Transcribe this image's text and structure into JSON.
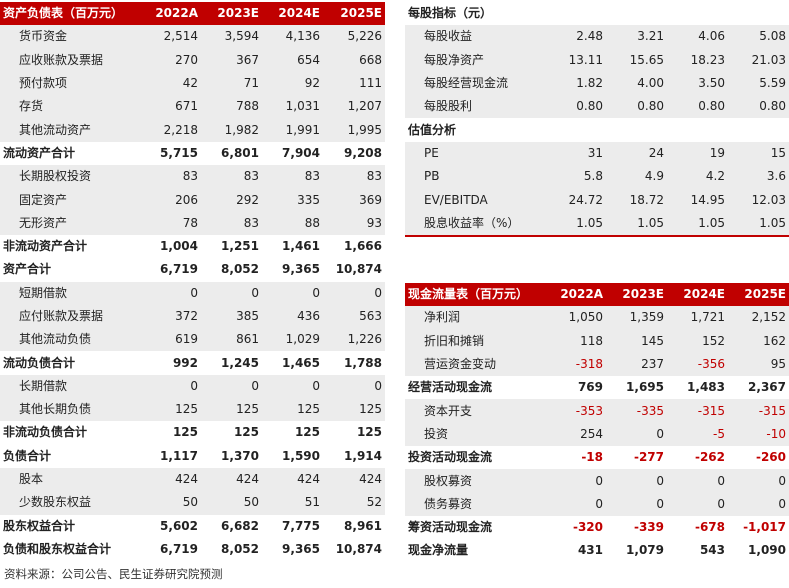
{
  "balance": {
    "header": [
      "资产负债表（百万元）",
      "2022A",
      "2023E",
      "2024E",
      "2025E"
    ],
    "rows": [
      {
        "label": "货币资金",
        "v": [
          "2,514",
          "3,594",
          "4,136",
          "5,226"
        ],
        "bold": false,
        "indent": true
      },
      {
        "label": "应收账款及票据",
        "v": [
          "270",
          "367",
          "654",
          "668"
        ],
        "bold": false,
        "indent": true
      },
      {
        "label": "预付款项",
        "v": [
          "42",
          "71",
          "92",
          "111"
        ],
        "bold": false,
        "indent": true
      },
      {
        "label": "存货",
        "v": [
          "671",
          "788",
          "1,031",
          "1,207"
        ],
        "bold": false,
        "indent": true
      },
      {
        "label": "其他流动资产",
        "v": [
          "2,218",
          "1,982",
          "1,991",
          "1,995"
        ],
        "bold": false,
        "indent": true
      },
      {
        "label": "流动资产合计",
        "v": [
          "5,715",
          "6,801",
          "7,904",
          "9,208"
        ],
        "bold": true,
        "indent": false
      },
      {
        "label": "长期股权投资",
        "v": [
          "83",
          "83",
          "83",
          "83"
        ],
        "bold": false,
        "indent": true
      },
      {
        "label": "固定资产",
        "v": [
          "206",
          "292",
          "335",
          "369"
        ],
        "bold": false,
        "indent": true
      },
      {
        "label": "无形资产",
        "v": [
          "78",
          "83",
          "88",
          "93"
        ],
        "bold": false,
        "indent": true
      },
      {
        "label": "非流动资产合计",
        "v": [
          "1,004",
          "1,251",
          "1,461",
          "1,666"
        ],
        "bold": true,
        "indent": false
      },
      {
        "label": "资产合计",
        "v": [
          "6,719",
          "8,052",
          "9,365",
          "10,874"
        ],
        "bold": true,
        "indent": false
      },
      {
        "label": "短期借款",
        "v": [
          "0",
          "0",
          "0",
          "0"
        ],
        "bold": false,
        "indent": true
      },
      {
        "label": "应付账款及票据",
        "v": [
          "372",
          "385",
          "436",
          "563"
        ],
        "bold": false,
        "indent": true
      },
      {
        "label": "其他流动负债",
        "v": [
          "619",
          "861",
          "1,029",
          "1,226"
        ],
        "bold": false,
        "indent": true
      },
      {
        "label": "流动负债合计",
        "v": [
          "992",
          "1,245",
          "1,465",
          "1,788"
        ],
        "bold": true,
        "indent": false
      },
      {
        "label": "长期借款",
        "v": [
          "0",
          "0",
          "0",
          "0"
        ],
        "bold": false,
        "indent": true
      },
      {
        "label": "其他长期负债",
        "v": [
          "125",
          "125",
          "125",
          "125"
        ],
        "bold": false,
        "indent": true
      },
      {
        "label": "非流动负债合计",
        "v": [
          "125",
          "125",
          "125",
          "125"
        ],
        "bold": true,
        "indent": false
      },
      {
        "label": "负债合计",
        "v": [
          "1,117",
          "1,370",
          "1,590",
          "1,914"
        ],
        "bold": true,
        "indent": false
      },
      {
        "label": "股本",
        "v": [
          "424",
          "424",
          "424",
          "424"
        ],
        "bold": false,
        "indent": true
      },
      {
        "label": "少数股东权益",
        "v": [
          "50",
          "50",
          "51",
          "52"
        ],
        "bold": false,
        "indent": true
      },
      {
        "label": "股东权益合计",
        "v": [
          "5,602",
          "6,682",
          "7,775",
          "8,961"
        ],
        "bold": true,
        "indent": false
      },
      {
        "label": "负债和股东权益合计",
        "v": [
          "6,719",
          "8,052",
          "9,365",
          "10,874"
        ],
        "bold": true,
        "indent": false
      }
    ]
  },
  "pershare": {
    "rows": [
      {
        "label": "每股指标（元）",
        "v": [
          "",
          "",
          "",
          ""
        ],
        "bold": true,
        "indent": false
      },
      {
        "label": "每股收益",
        "v": [
          "2.48",
          "3.21",
          "4.06",
          "5.08"
        ],
        "bold": false,
        "indent": true
      },
      {
        "label": "每股净资产",
        "v": [
          "13.11",
          "15.65",
          "18.23",
          "21.03"
        ],
        "bold": false,
        "indent": true
      },
      {
        "label": "每股经营现金流",
        "v": [
          "1.82",
          "4.00",
          "3.50",
          "5.59"
        ],
        "bold": false,
        "indent": true
      },
      {
        "label": "每股股利",
        "v": [
          "0.80",
          "0.80",
          "0.80",
          "0.80"
        ],
        "bold": false,
        "indent": true
      },
      {
        "label": "估值分析",
        "v": [
          "",
          "",
          "",
          ""
        ],
        "bold": true,
        "indent": false
      },
      {
        "label": "PE",
        "v": [
          "31",
          "24",
          "19",
          "15"
        ],
        "bold": false,
        "indent": true
      },
      {
        "label": "PB",
        "v": [
          "5.8",
          "4.9",
          "4.2",
          "3.6"
        ],
        "bold": false,
        "indent": true
      },
      {
        "label": "EV/EBITDA",
        "v": [
          "24.72",
          "18.72",
          "14.95",
          "12.03"
        ],
        "bold": false,
        "indent": true
      },
      {
        "label": "股息收益率（%）",
        "v": [
          "1.05",
          "1.05",
          "1.05",
          "1.05"
        ],
        "bold": false,
        "indent": true
      }
    ]
  },
  "cashflow": {
    "header": [
      "现金流量表（百万元）",
      "2022A",
      "2023E",
      "2024E",
      "2025E"
    ],
    "rows": [
      {
        "label": "净利润",
        "v": [
          "1,050",
          "1,359",
          "1,721",
          "2,152"
        ],
        "bold": false,
        "indent": true
      },
      {
        "label": "折旧和摊销",
        "v": [
          "118",
          "145",
          "152",
          "162"
        ],
        "bold": false,
        "indent": true
      },
      {
        "label": "营运资金变动",
        "v": [
          "-318",
          "237",
          "-356",
          "95"
        ],
        "bold": false,
        "indent": true
      },
      {
        "label": "经营活动现金流",
        "v": [
          "769",
          "1,695",
          "1,483",
          "2,367"
        ],
        "bold": true,
        "indent": false
      },
      {
        "label": "资本开支",
        "v": [
          "-353",
          "-335",
          "-315",
          "-315"
        ],
        "bold": false,
        "indent": true
      },
      {
        "label": "投资",
        "v": [
          "254",
          "0",
          "-5",
          "-10"
        ],
        "bold": false,
        "indent": true
      },
      {
        "label": "投资活动现金流",
        "v": [
          "-18",
          "-277",
          "-262",
          "-260"
        ],
        "bold": true,
        "indent": false
      },
      {
        "label": "股权募资",
        "v": [
          "0",
          "0",
          "0",
          "0"
        ],
        "bold": false,
        "indent": true
      },
      {
        "label": "债务募资",
        "v": [
          "0",
          "0",
          "0",
          "0"
        ],
        "bold": false,
        "indent": true
      },
      {
        "label": "筹资活动现金流",
        "v": [
          "-320",
          "-339",
          "-678",
          "-1,017"
        ],
        "bold": true,
        "indent": false
      },
      {
        "label": "现金净流量",
        "v": [
          "431",
          "1,079",
          "543",
          "1,090"
        ],
        "bold": true,
        "indent": false
      }
    ]
  },
  "source": "资料来源：公司公告、民生证券研究院预测",
  "colors": {
    "accent": "#c00000",
    "shade": "#ececec",
    "negative": "#c00000"
  }
}
